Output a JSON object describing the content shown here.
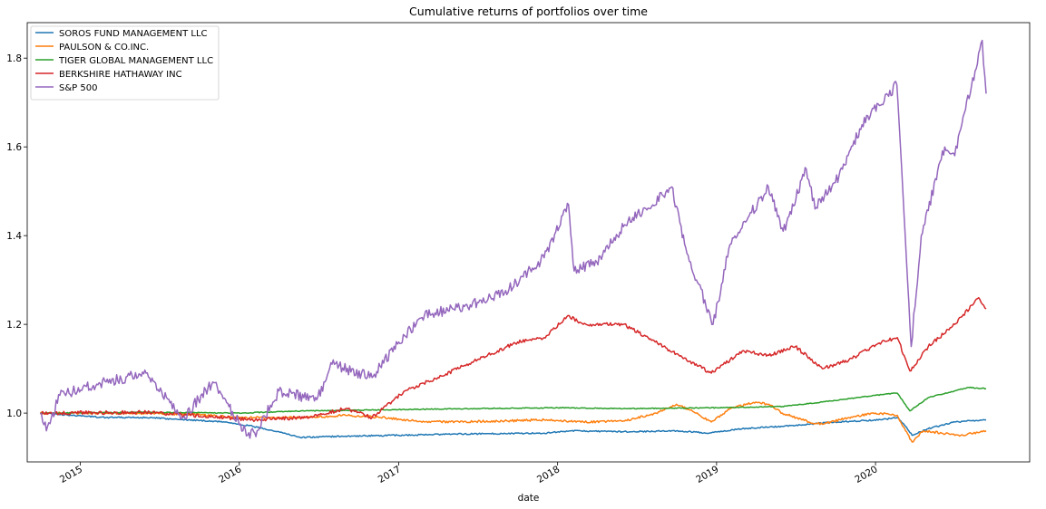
{
  "chart_data": {
    "type": "line",
    "title": "Cumulative returns of portfolios over time",
    "xlabel": "date",
    "ylabel": "",
    "xlim": [
      "2014-09-01",
      "2020-12-20"
    ],
    "ylim": [
      0.89,
      1.88
    ],
    "xticks": [
      "2015",
      "2016",
      "2017",
      "2018",
      "2019",
      "2020"
    ],
    "yticks": [
      "1.0",
      "1.2",
      "1.4",
      "1.6",
      "1.8"
    ],
    "grid": false,
    "legend_position": "top-left",
    "series": [
      {
        "name": "SOROS FUND MANAGEMENT LLC",
        "color": "#1f77b4",
        "points": [
          [
            "2014-10-01",
            1.0
          ],
          [
            "2014-12-15",
            0.995
          ],
          [
            "2015-03-01",
            0.99
          ],
          [
            "2015-06-01",
            0.99
          ],
          [
            "2015-09-01",
            0.985
          ],
          [
            "2015-12-01",
            0.98
          ],
          [
            "2016-02-01",
            0.97
          ],
          [
            "2016-04-01",
            0.958
          ],
          [
            "2016-05-20",
            0.945
          ],
          [
            "2016-09-01",
            0.948
          ],
          [
            "2017-01-01",
            0.95
          ],
          [
            "2017-06-01",
            0.953
          ],
          [
            "2017-12-01",
            0.955
          ],
          [
            "2018-02-01",
            0.96
          ],
          [
            "2018-06-01",
            0.958
          ],
          [
            "2018-10-01",
            0.96
          ],
          [
            "2018-12-15",
            0.955
          ],
          [
            "2019-03-01",
            0.965
          ],
          [
            "2019-06-01",
            0.97
          ],
          [
            "2019-10-01",
            0.98
          ],
          [
            "2020-01-15",
            0.985
          ],
          [
            "2020-02-20",
            0.99
          ],
          [
            "2020-03-10",
            0.97
          ],
          [
            "2020-03-25",
            0.95
          ],
          [
            "2020-05-01",
            0.965
          ],
          [
            "2020-07-01",
            0.98
          ],
          [
            "2020-09-11",
            0.985
          ]
        ]
      },
      {
        "name": "PAULSON & CO.INC.",
        "color": "#ff7f0e",
        "points": [
          [
            "2014-10-01",
            1.0
          ],
          [
            "2015-03-01",
            1.0
          ],
          [
            "2015-09-01",
            0.998
          ],
          [
            "2016-01-01",
            0.99
          ],
          [
            "2016-06-01",
            0.99
          ],
          [
            "2016-09-01",
            0.995
          ],
          [
            "2016-12-01",
            0.99
          ],
          [
            "2017-03-01",
            0.98
          ],
          [
            "2017-09-01",
            0.982
          ],
          [
            "2017-12-01",
            0.985
          ],
          [
            "2018-03-01",
            0.98
          ],
          [
            "2018-06-01",
            0.982
          ],
          [
            "2018-08-15",
            1.0
          ],
          [
            "2018-10-01",
            1.02
          ],
          [
            "2018-11-15",
            1.0
          ],
          [
            "2018-12-20",
            0.98
          ],
          [
            "2019-02-01",
            1.01
          ],
          [
            "2019-04-01",
            1.025
          ],
          [
            "2019-05-01",
            1.02
          ],
          [
            "2019-06-01",
            1.0
          ],
          [
            "2019-08-01",
            0.98
          ],
          [
            "2019-09-01",
            0.975
          ],
          [
            "2019-11-01",
            0.99
          ],
          [
            "2020-01-01",
            1.0
          ],
          [
            "2020-02-20",
            0.995
          ],
          [
            "2020-03-10",
            0.96
          ],
          [
            "2020-03-25",
            0.935
          ],
          [
            "2020-04-20",
            0.96
          ],
          [
            "2020-06-01",
            0.955
          ],
          [
            "2020-07-15",
            0.95
          ],
          [
            "2020-09-11",
            0.96
          ]
        ]
      },
      {
        "name": "TIGER GLOBAL MANAGEMENT LLC",
        "color": "#2ca02c",
        "points": [
          [
            "2014-10-01",
            1.0
          ],
          [
            "2015-06-01",
            1.002
          ],
          [
            "2016-01-01",
            1.0
          ],
          [
            "2016-06-01",
            1.005
          ],
          [
            "2017-01-01",
            1.008
          ],
          [
            "2017-06-01",
            1.01
          ],
          [
            "2018-01-01",
            1.012
          ],
          [
            "2018-06-01",
            1.01
          ],
          [
            "2019-01-01",
            1.012
          ],
          [
            "2019-06-01",
            1.015
          ],
          [
            "2019-09-01",
            1.025
          ],
          [
            "2020-01-01",
            1.04
          ],
          [
            "2020-02-20",
            1.045
          ],
          [
            "2020-03-20",
            1.005
          ],
          [
            "2020-05-01",
            1.035
          ],
          [
            "2020-07-01",
            1.05
          ],
          [
            "2020-08-01",
            1.058
          ],
          [
            "2020-09-11",
            1.055
          ]
        ]
      },
      {
        "name": "BERKSHIRE HATHAWAY INC",
        "color": "#d62728",
        "points": [
          [
            "2014-10-01",
            1.0
          ],
          [
            "2015-06-01",
            1.002
          ],
          [
            "2015-12-01",
            0.99
          ],
          [
            "2016-02-01",
            0.985
          ],
          [
            "2016-06-01",
            0.99
          ],
          [
            "2016-09-01",
            1.01
          ],
          [
            "2016-11-01",
            0.99
          ],
          [
            "2017-01-15",
            1.05
          ],
          [
            "2017-04-01",
            1.08
          ],
          [
            "2017-07-01",
            1.12
          ],
          [
            "2017-10-01",
            1.16
          ],
          [
            "2017-12-01",
            1.17
          ],
          [
            "2018-01-25",
            1.22
          ],
          [
            "2018-03-01",
            1.2
          ],
          [
            "2018-06-01",
            1.2
          ],
          [
            "2018-09-01",
            1.15
          ],
          [
            "2018-12-20",
            1.09
          ],
          [
            "2019-03-01",
            1.14
          ],
          [
            "2019-05-01",
            1.13
          ],
          [
            "2019-07-01",
            1.15
          ],
          [
            "2019-09-01",
            1.1
          ],
          [
            "2019-11-01",
            1.12
          ],
          [
            "2020-01-15",
            1.16
          ],
          [
            "2020-02-20",
            1.17
          ],
          [
            "2020-03-20",
            1.095
          ],
          [
            "2020-05-01",
            1.15
          ],
          [
            "2020-07-01",
            1.2
          ],
          [
            "2020-08-25",
            1.26
          ],
          [
            "2020-09-11",
            1.235
          ]
        ]
      },
      {
        "name": "S&P 500",
        "color": "#9467bd",
        "points": [
          [
            "2014-10-01",
            1.0
          ],
          [
            "2014-10-15",
            0.96
          ],
          [
            "2014-11-15",
            1.04
          ],
          [
            "2015-01-15",
            1.06
          ],
          [
            "2015-03-01",
            1.07
          ],
          [
            "2015-06-01",
            1.09
          ],
          [
            "2015-08-25",
            0.99
          ],
          [
            "2015-11-01",
            1.07
          ],
          [
            "2016-01-20",
            0.95
          ],
          [
            "2016-02-11",
            0.96
          ],
          [
            "2016-04-01",
            1.05
          ],
          [
            "2016-06-27",
            1.03
          ],
          [
            "2016-08-01",
            1.11
          ],
          [
            "2016-11-01",
            1.08
          ],
          [
            "2017-01-01",
            1.16
          ],
          [
            "2017-03-01",
            1.22
          ],
          [
            "2017-06-01",
            1.24
          ],
          [
            "2017-09-01",
            1.27
          ],
          [
            "2017-12-01",
            1.35
          ],
          [
            "2018-01-26",
            1.47
          ],
          [
            "2018-02-08",
            1.32
          ],
          [
            "2018-04-01",
            1.34
          ],
          [
            "2018-06-01",
            1.42
          ],
          [
            "2018-09-20",
            1.51
          ],
          [
            "2018-10-25",
            1.36
          ],
          [
            "2018-12-24",
            1.2
          ],
          [
            "2019-02-01",
            1.38
          ],
          [
            "2019-04-30",
            1.51
          ],
          [
            "2019-06-03",
            1.41
          ],
          [
            "2019-07-26",
            1.55
          ],
          [
            "2019-08-15",
            1.46
          ],
          [
            "2019-10-01",
            1.52
          ],
          [
            "2019-12-01",
            1.65
          ],
          [
            "2020-02-19",
            1.74
          ],
          [
            "2020-03-23",
            1.15
          ],
          [
            "2020-04-15",
            1.4
          ],
          [
            "2020-06-08",
            1.6
          ],
          [
            "2020-07-01",
            1.58
          ],
          [
            "2020-09-02",
            1.84
          ],
          [
            "2020-09-11",
            1.72
          ]
        ]
      }
    ]
  }
}
